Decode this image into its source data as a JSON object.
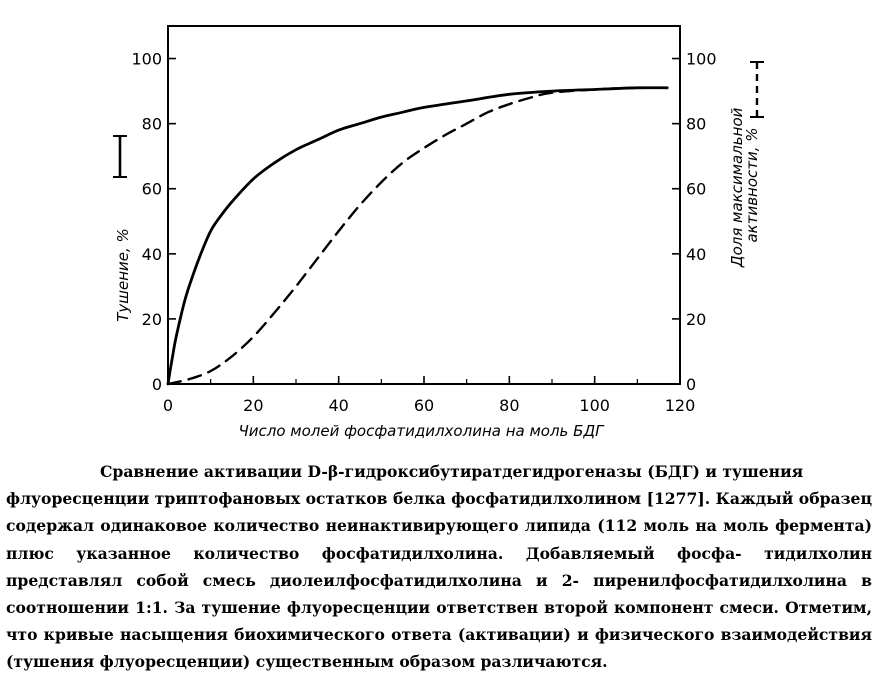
{
  "chart_data": {
    "type": "line",
    "xlabel": "Число молей фосфатидилхолина на моль БДГ",
    "ylabel_left": "Тушение, %",
    "ylabel_right": "Доля максимальной активности, %",
    "xlim": [
      0,
      120
    ],
    "ylim": [
      0,
      110
    ],
    "x_ticks": [
      "0",
      "20",
      "40",
      "60",
      "80",
      "100",
      "120"
    ],
    "y_ticks_left": [
      "0",
      "20",
      "40",
      "60",
      "80",
      "100"
    ],
    "y_ticks_right": [
      "0",
      "20",
      "40",
      "60",
      "80",
      "100"
    ],
    "grid": false,
    "series": [
      {
        "style": "solid",
        "x": [
          0,
          1,
          2,
          4,
          6,
          8,
          10,
          12,
          15,
          20,
          25,
          30,
          35,
          40,
          45,
          50,
          55,
          60,
          70,
          80,
          90,
          100,
          110,
          117
        ],
        "y": [
          0,
          8,
          15,
          26,
          34,
          41,
          47,
          51,
          56,
          63,
          68,
          72,
          75,
          78,
          80,
          82,
          83.5,
          85,
          87,
          89,
          90,
          90.5,
          91,
          91
        ]
      },
      {
        "style": "dashed",
        "x": [
          0,
          5,
          10,
          15,
          20,
          25,
          30,
          35,
          40,
          45,
          50,
          55,
          60,
          65,
          70,
          75,
          80,
          85,
          90,
          100,
          110,
          117
        ],
        "y": [
          0,
          1.5,
          4,
          8.5,
          14.5,
          22,
          30,
          38.5,
          47,
          55,
          62,
          68,
          72.5,
          76.5,
          80,
          83.5,
          86,
          88,
          89.5,
          90.5,
          91,
          91
        ]
      }
    ]
  },
  "caption": {
    "lines": [
      "Сравнение активации D-β-гидроксибутиратдегидрогеназы (БДГ) и тушения",
      "флуоресценции триптофановых остатков белка фосфатидилхолином [1277]. Каждый",
      "образец содержал одинаковое количество неинактивирующего липида (112 моль на",
      "моль фермента) плюс указанное количество фосфатидилхолина. Добавляемый фосфа-",
      "тидилхолин представлял собой смесь диолеилфосфатидилхолина и 2-",
      "пиренилфосфатидилхолина в соотношении 1:1. За тушение флуоресценции ответствен",
      "второй компонент смеси. Отметим, что кривые насыщения биохимического ответа",
      "(активации) и физического взаимодействия (тушения флуоресценции) существенным",
      "образом различаются."
    ]
  }
}
